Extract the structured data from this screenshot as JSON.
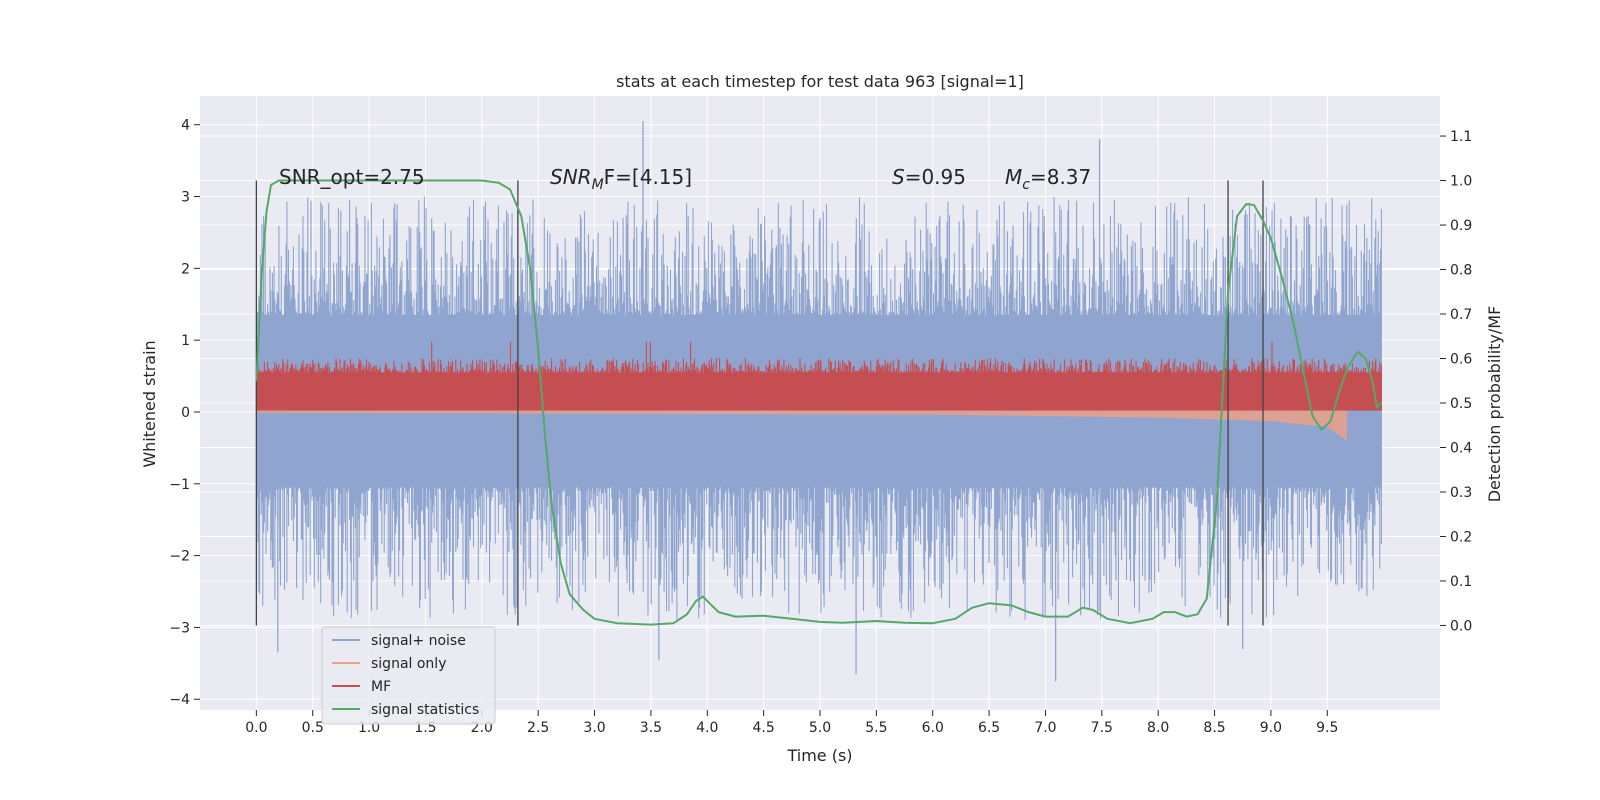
{
  "chart_data": {
    "type": "line",
    "title": "stats at each timestep for test data 963 [signal=1]",
    "xlabel": "Time (s)",
    "ylabel": "Whitened strain",
    "y2label": "Detection probability/MF",
    "xlim": [
      -0.5,
      10.5
    ],
    "ylim": [
      -4.15,
      4.4
    ],
    "y2lim": [
      -0.19,
      1.19
    ],
    "x_ticks": [
      "0.0",
      "0.5",
      "1.0",
      "1.5",
      "2.0",
      "2.5",
      "3.0",
      "3.5",
      "4.0",
      "4.5",
      "5.0",
      "5.5",
      "6.0",
      "6.5",
      "7.0",
      "7.5",
      "8.0",
      "8.5",
      "9.0",
      "9.5"
    ],
    "y_ticks": [
      "4",
      "3",
      "2",
      "1",
      "0",
      "−1",
      "−2",
      "−3",
      "−4"
    ],
    "y2_ticks": [
      "1.1",
      "1.0",
      "0.9",
      "0.8",
      "0.7",
      "0.6",
      "0.5",
      "0.4",
      "0.3",
      "0.2",
      "0.1",
      "0.0"
    ],
    "grid": true,
    "legend_position": "lower-left",
    "annotations": {
      "snr_opt": "SNR_opt=2.75",
      "snr_mf_prefix": "SNR",
      "snr_mf_sub": "M",
      "snr_mf_suffix": "F=[4.15]",
      "s_sym": "S",
      "s_val": "=0.95",
      "mc_sym": "M",
      "mc_sub": "c",
      "mc_val": "=8.37"
    },
    "vertical_lines": [
      0.0,
      2.32,
      8.62,
      8.93
    ],
    "series": [
      {
        "name": "signal+ noise",
        "color": "#8fa5cf",
        "t_range": [
          0.0,
          9.98
        ],
        "envelope_core": [
          -1.05,
          1.35
        ],
        "typical_peak_range": [
          -2.9,
          3.0
        ],
        "extremes": [
          {
            "t": 3.43,
            "y": 4.05
          },
          {
            "t": 7.48,
            "y": 3.8
          },
          {
            "t": 0.19,
            "y": -3.35
          },
          {
            "t": 3.57,
            "y": -3.45
          },
          {
            "t": 5.32,
            "y": -3.65
          },
          {
            "t": 7.09,
            "y": -3.75
          },
          {
            "t": 8.75,
            "y": -3.3
          }
        ]
      },
      {
        "name": "signal only",
        "color": "#e8a08a",
        "t_range": [
          0.0,
          9.67
        ],
        "baseline": 0.0,
        "note_points": [
          [
            0.0,
            0.0
          ],
          [
            6.0,
            -0.03
          ],
          [
            8.0,
            -0.07
          ],
          [
            9.0,
            -0.12
          ],
          [
            9.5,
            -0.2
          ],
          [
            9.67,
            -0.38
          ]
        ]
      },
      {
        "name": "MF",
        "color": "#c44e52",
        "t_range": [
          0.0,
          9.98
        ],
        "band": [
          0.02,
          0.55
        ],
        "typical_peak": 0.75,
        "max_peak": 0.98
      },
      {
        "name": "signal statistics",
        "color": "#55a868",
        "axis": "right",
        "points": [
          [
            0.0,
            0.55
          ],
          [
            0.05,
            0.8
          ],
          [
            0.09,
            0.93
          ],
          [
            0.13,
            0.99
          ],
          [
            0.2,
            1.0
          ],
          [
            0.5,
            1.0
          ],
          [
            1.0,
            1.0
          ],
          [
            1.5,
            1.0
          ],
          [
            2.0,
            1.0
          ],
          [
            2.15,
            0.995
          ],
          [
            2.25,
            0.98
          ],
          [
            2.35,
            0.92
          ],
          [
            2.43,
            0.8
          ],
          [
            2.5,
            0.62
          ],
          [
            2.56,
            0.43
          ],
          [
            2.62,
            0.27
          ],
          [
            2.7,
            0.14
          ],
          [
            2.78,
            0.07
          ],
          [
            2.9,
            0.035
          ],
          [
            3.0,
            0.015
          ],
          [
            3.2,
            0.005
          ],
          [
            3.5,
            0.002
          ],
          [
            3.7,
            0.005
          ],
          [
            3.82,
            0.025
          ],
          [
            3.9,
            0.055
          ],
          [
            3.96,
            0.065
          ],
          [
            4.02,
            0.05
          ],
          [
            4.1,
            0.03
          ],
          [
            4.25,
            0.02
          ],
          [
            4.5,
            0.022
          ],
          [
            4.75,
            0.015
          ],
          [
            5.0,
            0.008
          ],
          [
            5.2,
            0.006
          ],
          [
            5.5,
            0.01
          ],
          [
            5.75,
            0.006
          ],
          [
            6.0,
            0.005
          ],
          [
            6.2,
            0.015
          ],
          [
            6.35,
            0.04
          ],
          [
            6.5,
            0.05
          ],
          [
            6.7,
            0.045
          ],
          [
            6.85,
            0.03
          ],
          [
            7.0,
            0.02
          ],
          [
            7.2,
            0.02
          ],
          [
            7.33,
            0.04
          ],
          [
            7.42,
            0.035
          ],
          [
            7.55,
            0.015
          ],
          [
            7.75,
            0.005
          ],
          [
            7.95,
            0.015
          ],
          [
            8.05,
            0.03
          ],
          [
            8.15,
            0.03
          ],
          [
            8.25,
            0.02
          ],
          [
            8.35,
            0.025
          ],
          [
            8.43,
            0.06
          ],
          [
            8.52,
            0.28
          ],
          [
            8.62,
            0.75
          ],
          [
            8.7,
            0.92
          ],
          [
            8.78,
            0.947
          ],
          [
            8.85,
            0.945
          ],
          [
            8.93,
            0.91
          ],
          [
            9.0,
            0.87
          ],
          [
            9.1,
            0.78
          ],
          [
            9.2,
            0.68
          ],
          [
            9.28,
            0.58
          ],
          [
            9.37,
            0.47
          ],
          [
            9.45,
            0.44
          ],
          [
            9.53,
            0.46
          ],
          [
            9.6,
            0.52
          ],
          [
            9.68,
            0.58
          ],
          [
            9.77,
            0.615
          ],
          [
            9.84,
            0.6
          ],
          [
            9.9,
            0.55
          ],
          [
            9.94,
            0.49
          ],
          [
            9.98,
            0.5
          ]
        ]
      }
    ]
  },
  "legend": [
    {
      "label": "signal+ noise",
      "color": "#8fa5cf"
    },
    {
      "label": "signal only",
      "color": "#e8a08a"
    },
    {
      "label": "MF",
      "color": "#c44e52"
    },
    {
      "label": "signal statistics",
      "color": "#55a868"
    }
  ]
}
